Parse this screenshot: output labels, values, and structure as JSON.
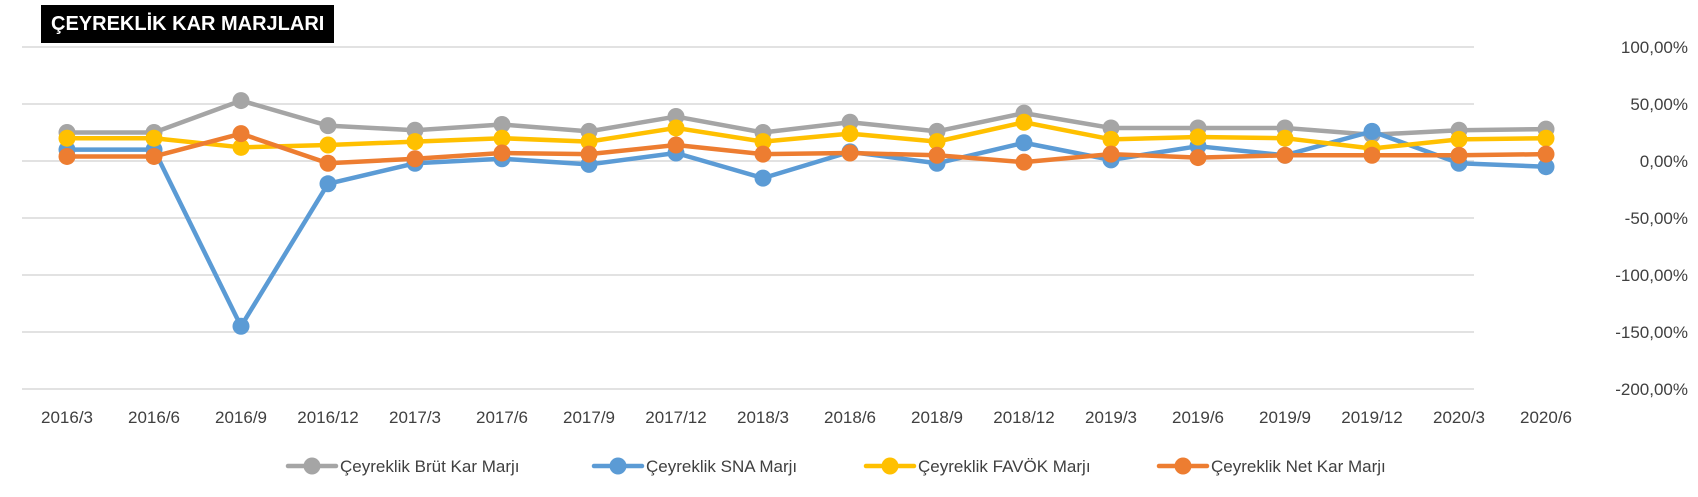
{
  "chart_data": {
    "type": "line",
    "title": "ÇEYREKLİK KAR MARJLARI",
    "categories": [
      "2016/3",
      "2016/6",
      "2016/9",
      "2016/12",
      "2017/3",
      "2017/6",
      "2017/9",
      "2017/12",
      "2018/3",
      "2018/6",
      "2018/9",
      "2018/12",
      "2019/3",
      "2019/6",
      "2019/9",
      "2019/12",
      "2020/3",
      "2020/6"
    ],
    "y_ticks": [
      "100,00%",
      "50,00%",
      "0,00%",
      "-50,00%",
      "-100,00%",
      "-150,00%",
      "-200,00%"
    ],
    "y_tick_values": [
      100,
      50,
      0,
      -50,
      -100,
      -150,
      -200
    ],
    "ylim": [
      -200,
      100
    ],
    "y_unit": "%",
    "grid": true,
    "legend_position": "bottom",
    "series": [
      {
        "name": "Çeyreklik Brüt Kar Marjı",
        "color": "#a5a5a5",
        "values": [
          25,
          25,
          53,
          31,
          27,
          32,
          26,
          39,
          25,
          34,
          26,
          42,
          29,
          29,
          29,
          23,
          27,
          28
        ]
      },
      {
        "name": "Çeyreklik SNA Marjı",
        "color": "#5b9bd5",
        "values": [
          10,
          10,
          -145,
          -20,
          -2,
          2,
          -3,
          7,
          -15,
          8,
          -2,
          16,
          1,
          13,
          5,
          26,
          -2,
          -5
        ]
      },
      {
        "name": "Çeyreklik FAVÖK Marjı",
        "color": "#ffc000",
        "values": [
          20,
          20,
          12,
          14,
          17,
          20,
          17,
          29,
          17,
          24,
          17,
          34,
          19,
          21,
          20,
          11,
          19,
          20
        ]
      },
      {
        "name": "Çeyreklik Net Kar Marjı",
        "color": "#ed7d31",
        "values": [
          4,
          4,
          24,
          -2,
          2,
          7,
          6,
          14,
          6,
          7,
          5,
          -1,
          6,
          3,
          5,
          5,
          5,
          6
        ]
      }
    ]
  }
}
